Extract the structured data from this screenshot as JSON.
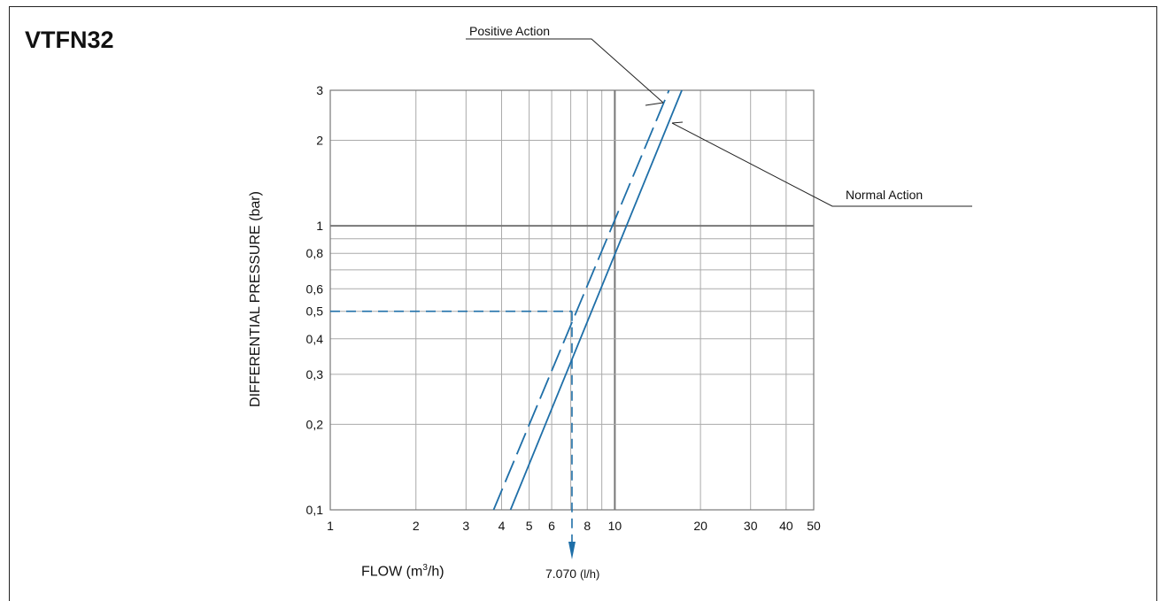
{
  "chart_data": {
    "type": "line",
    "title": "VTFN32",
    "xlabel": {
      "prefix": "FLOW  (m",
      "sup": "3",
      "suffix": "/h)"
    },
    "ylabel": "DIFFERENTIAL PRESSURE (bar)",
    "x_scale": "log",
    "y_scale": "log",
    "xlim": [
      1,
      50
    ],
    "ylim": [
      0.1,
      3
    ],
    "x_ticks": [
      {
        "v": 1,
        "label": "1"
      },
      {
        "v": 2,
        "label": "2"
      },
      {
        "v": 3,
        "label": "3"
      },
      {
        "v": 4,
        "label": "4"
      },
      {
        "v": 5,
        "label": "5"
      },
      {
        "v": 6,
        "label": "6"
      },
      {
        "v": 8,
        "label": "8"
      },
      {
        "v": 10,
        "label": "10"
      },
      {
        "v": 20,
        "label": "20"
      },
      {
        "v": 30,
        "label": "30"
      },
      {
        "v": 40,
        "label": "40"
      },
      {
        "v": 50,
        "label": "50"
      }
    ],
    "y_ticks": [
      {
        "v": 0.1,
        "label": "0,1"
      },
      {
        "v": 0.2,
        "label": "0,2"
      },
      {
        "v": 0.3,
        "label": "0,3"
      },
      {
        "v": 0.4,
        "label": "0,4"
      },
      {
        "v": 0.5,
        "label": "0,5"
      },
      {
        "v": 0.6,
        "label": "0,6"
      },
      {
        "v": 0.8,
        "label": "0,8"
      },
      {
        "v": 1,
        "label": "1"
      },
      {
        "v": 2,
        "label": "2"
      },
      {
        "v": 3,
        "label": "3"
      }
    ],
    "x_grid": [
      1,
      2,
      3,
      4,
      5,
      6,
      7,
      8,
      9,
      10,
      20,
      30,
      40,
      50
    ],
    "y_grid": [
      0.1,
      0.2,
      0.3,
      0.4,
      0.5,
      0.6,
      0.7,
      0.8,
      0.9,
      1,
      2,
      3
    ],
    "x_emphasis": [
      10
    ],
    "y_emphasis": [
      1
    ],
    "grid": true,
    "series": [
      {
        "name": "Positive Action",
        "style": "dashed",
        "x": [
          3.75,
          15.5
        ],
        "y": [
          0.1,
          3
        ]
      },
      {
        "name": "Normal Action",
        "style": "solid",
        "x": [
          4.3,
          17.2
        ],
        "y": [
          0.1,
          3
        ]
      }
    ],
    "reference": {
      "y": 0.5,
      "x": 7.07
    },
    "annotations": {
      "readout_value": "7.070",
      "readout_unit": "(l/h)"
    },
    "line_color": "#1f6fa8"
  }
}
